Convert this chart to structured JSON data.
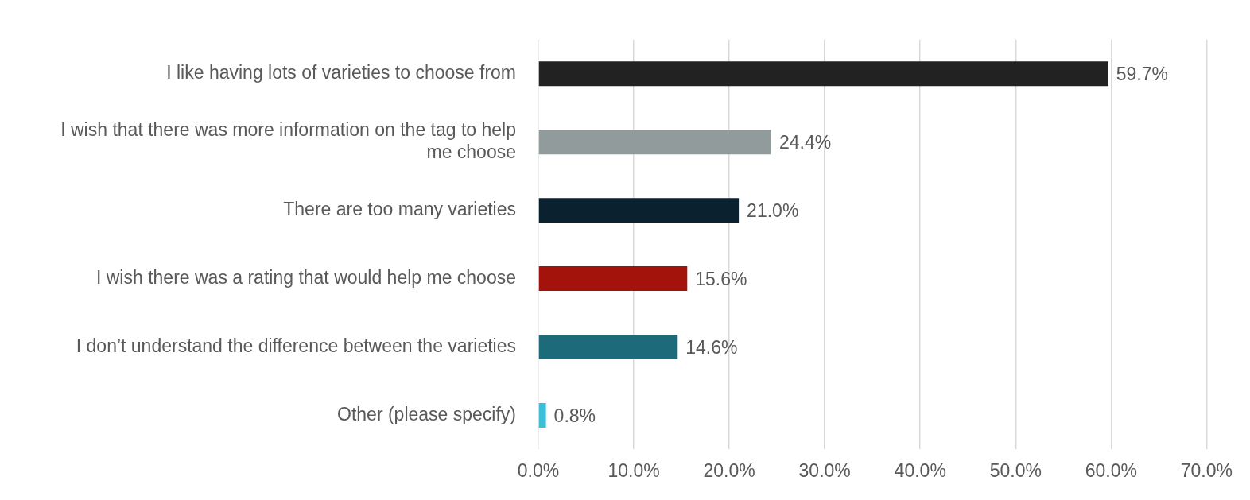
{
  "chart_data": {
    "type": "bar",
    "orientation": "horizontal",
    "categories": [
      "I like having lots of varieties to choose from",
      "I wish that there was more information on the tag to help me choose",
      "There are too many varieties",
      "I wish there was a rating that would help me choose",
      "I don’t understand the difference between the varieties",
      "Other (please specify)"
    ],
    "values": [
      59.7,
      24.4,
      21.0,
      15.6,
      14.6,
      0.8
    ],
    "colors": [
      "#222222",
      "#919b9b",
      "#0a2230",
      "#a3120b",
      "#1c6a7a",
      "#3bbfd8"
    ],
    "value_labels": [
      "59.7%",
      "24.4%",
      "21.0%",
      "15.6%",
      "14.6%",
      "0.8%"
    ],
    "xlim": [
      0,
      70
    ],
    "xticks": [
      {
        "value": 0,
        "label": "0.0%"
      },
      {
        "value": 10,
        "label": "10.0%"
      },
      {
        "value": 20,
        "label": "20.0%"
      },
      {
        "value": 30,
        "label": "30.0%"
      },
      {
        "value": 40,
        "label": "40.0%"
      },
      {
        "value": 50,
        "label": "50.0%"
      },
      {
        "value": 60,
        "label": "60.0%"
      },
      {
        "value": 70,
        "label": "70.0%"
      }
    ],
    "grid": "x",
    "legend": false
  }
}
